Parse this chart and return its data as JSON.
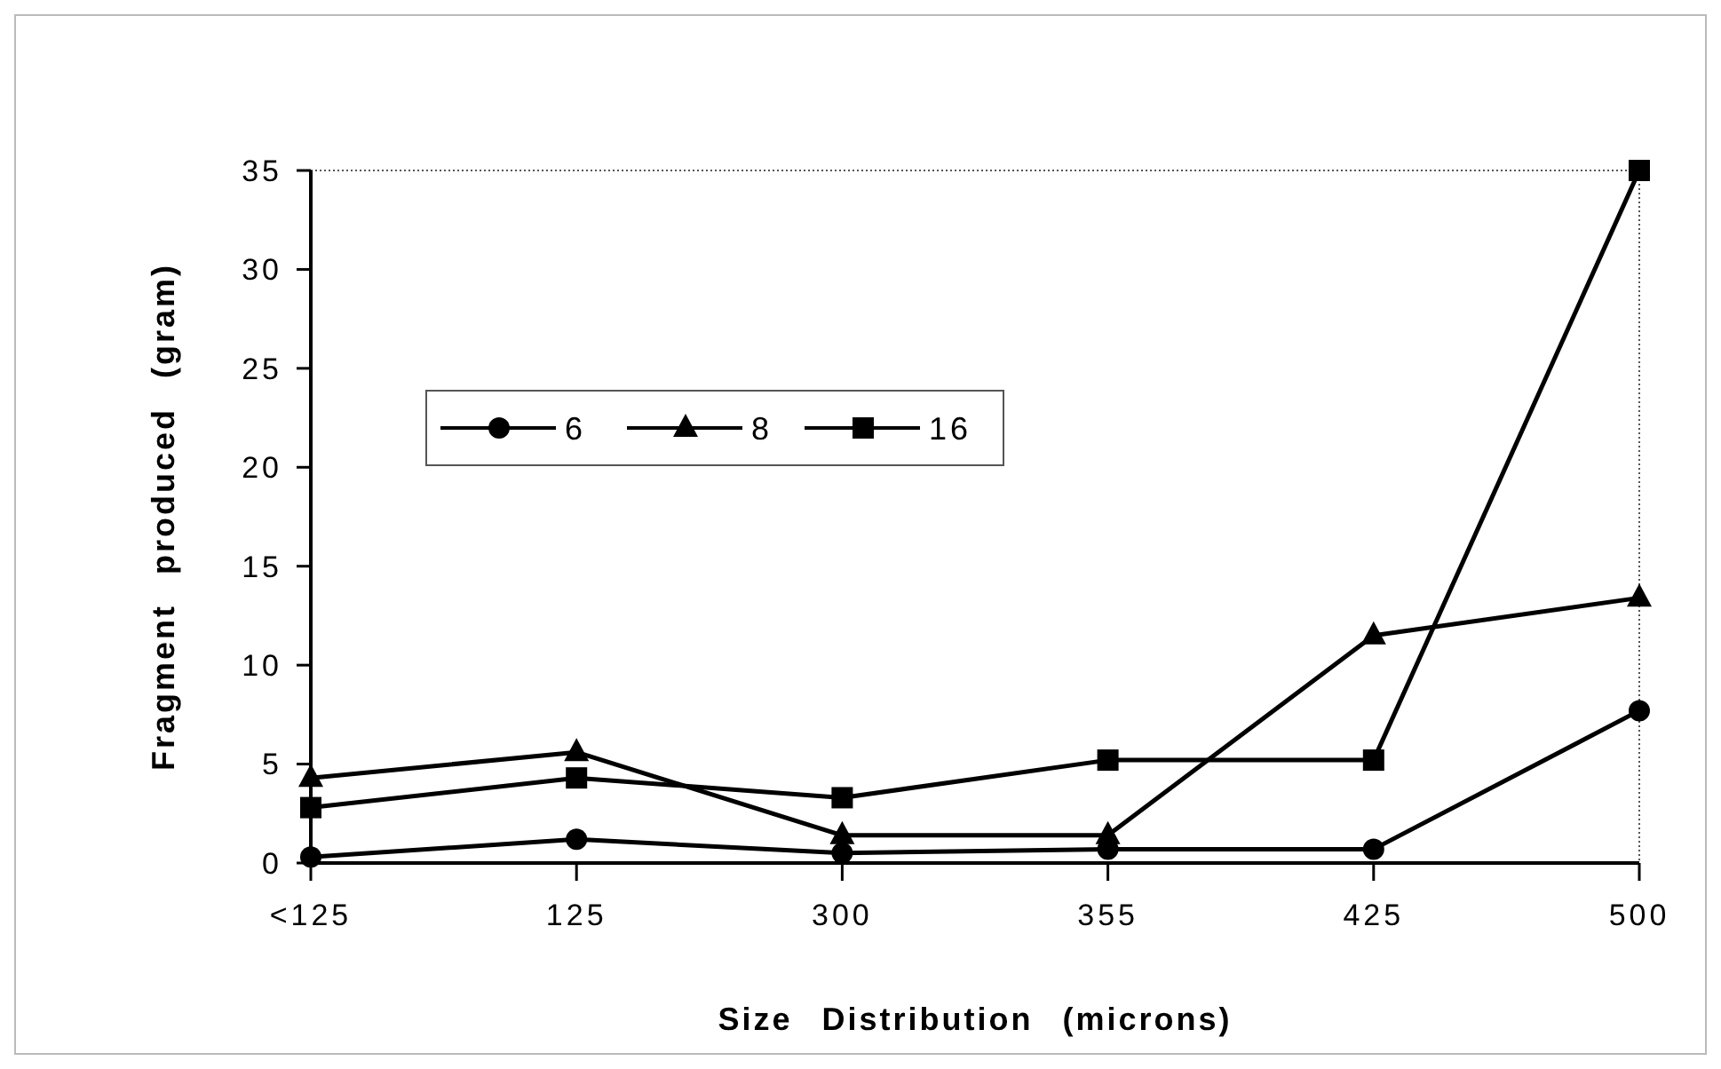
{
  "chart_data": {
    "type": "line",
    "xlabel": "Size Distribution (microns)",
    "ylabel": "Fragment produced (gram)",
    "categories": [
      "<125",
      "125",
      "300",
      "355",
      "425",
      "500"
    ],
    "series": [
      {
        "name": "6",
        "color": "#000000",
        "marker": "circle",
        "values": [
          0.3,
          1.2,
          0.5,
          0.7,
          0.7,
          7.7
        ]
      },
      {
        "name": "8",
        "color": "#000000",
        "marker": "triangle",
        "values": [
          4.3,
          5.6,
          1.4,
          1.4,
          11.5,
          13.4
        ]
      },
      {
        "name": "16",
        "color": "#000000",
        "marker": "square",
        "values": [
          2.8,
          4.3,
          3.3,
          5.2,
          5.2,
          35
        ]
      }
    ],
    "ylim": [
      0,
      35
    ],
    "yticks": [
      0,
      5,
      10,
      15,
      20,
      25,
      30,
      35
    ],
    "grid": false,
    "legend": "top left",
    "line_style": "solid"
  }
}
